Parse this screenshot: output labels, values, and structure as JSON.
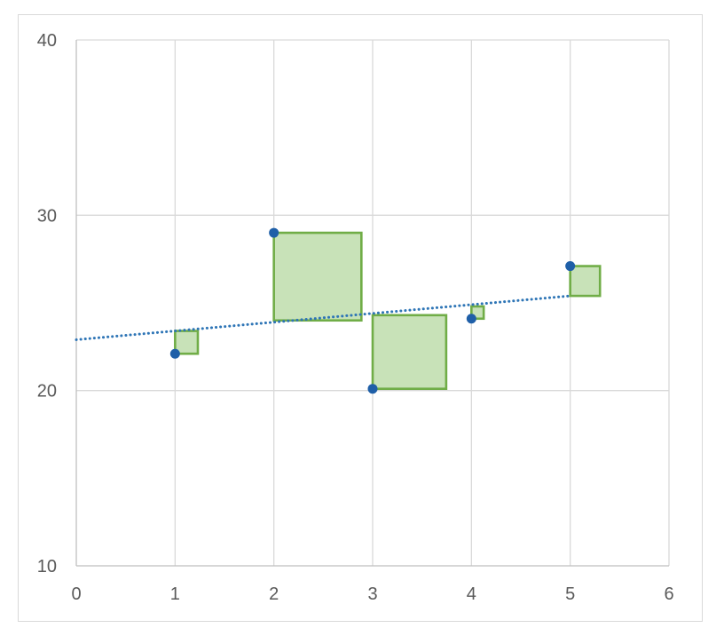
{
  "chart_data": {
    "type": "scatter",
    "title": "",
    "xlabel": "",
    "ylabel": "",
    "xlim": [
      0,
      6
    ],
    "ylim": [
      10,
      40
    ],
    "x_ticks": [
      0,
      1,
      2,
      3,
      4,
      5,
      6
    ],
    "y_ticks": [
      10,
      20,
      30,
      40
    ],
    "grid": true,
    "series": [
      {
        "type": "scatter",
        "color": "#1f5fa8",
        "x": [
          1,
          2,
          3,
          4,
          5
        ],
        "y": [
          22.1,
          29,
          20.1,
          24.1,
          27.1
        ]
      }
    ],
    "trendline": {
      "type": "linear",
      "style": "dotted",
      "color": "#2e75b6",
      "x": [
        0,
        5
      ],
      "y": [
        22.9,
        25.4
      ]
    },
    "residual_squares": {
      "color": "#70ad47",
      "fill": "#c5e0b4",
      "anchor_points": [
        {
          "x": 1,
          "y_from": 22.1,
          "y_to": 23.4
        },
        {
          "x": 2,
          "y_from": 29,
          "y_to": 24
        },
        {
          "x": 3,
          "y_from": 20.1,
          "y_to": 24.3
        },
        {
          "x": 4,
          "y_from": 24.1,
          "y_to": 24.8
        },
        {
          "x": 5,
          "y_from": 27.1,
          "y_to": 25.4
        }
      ]
    }
  }
}
